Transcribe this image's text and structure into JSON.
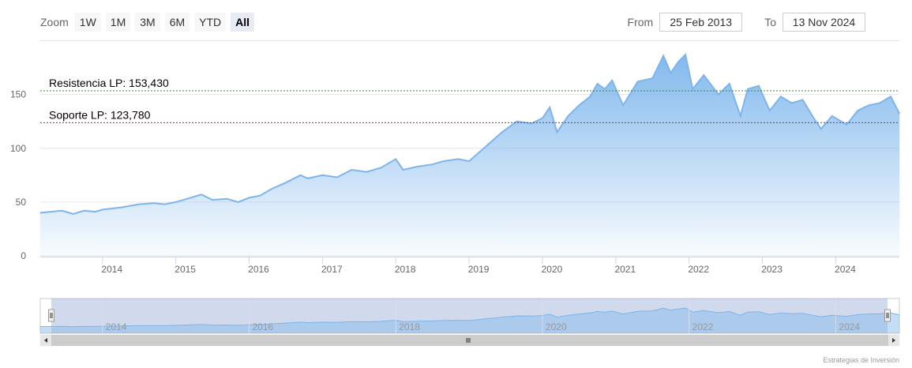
{
  "toolbar": {
    "zoom_label": "Zoom",
    "buttons": [
      "1W",
      "1M",
      "3M",
      "6M",
      "YTD",
      "All"
    ],
    "active": "All",
    "from_label": "From",
    "from_value": "25 Feb 2013",
    "to_label": "To",
    "to_value": "13 Nov 2024"
  },
  "credit": "Estrategias de Inversión",
  "colors": {
    "line": "#7cb5ec",
    "resistance": "#2e8b2e",
    "support": "#b22222"
  },
  "chart_data": {
    "type": "area",
    "x_start": "2013-02-25",
    "x_end": "2024-11-13",
    "ylim": [
      0,
      200
    ],
    "y_ticks": [
      0,
      50,
      100,
      150
    ],
    "x_ticks": [
      2014,
      2015,
      2016,
      2017,
      2018,
      2019,
      2020,
      2021,
      2022,
      2023,
      2024
    ],
    "navigator_ticks": [
      2014,
      2016,
      2018,
      2020,
      2022,
      2024
    ],
    "points": [
      [
        2013.15,
        40
      ],
      [
        2013.3,
        41
      ],
      [
        2013.45,
        42
      ],
      [
        2013.6,
        39
      ],
      [
        2013.75,
        42
      ],
      [
        2013.9,
        41
      ],
      [
        2014.0,
        43
      ],
      [
        2014.25,
        45
      ],
      [
        2014.5,
        48
      ],
      [
        2014.7,
        49
      ],
      [
        2014.85,
        48
      ],
      [
        2015.0,
        50
      ],
      [
        2015.2,
        54
      ],
      [
        2015.35,
        57
      ],
      [
        2015.5,
        52
      ],
      [
        2015.7,
        53
      ],
      [
        2015.85,
        50
      ],
      [
        2016.0,
        54
      ],
      [
        2016.15,
        56
      ],
      [
        2016.3,
        62
      ],
      [
        2016.5,
        68
      ],
      [
        2016.7,
        75
      ],
      [
        2016.8,
        72
      ],
      [
        2017.0,
        75
      ],
      [
        2017.2,
        73
      ],
      [
        2017.4,
        80
      ],
      [
        2017.6,
        78
      ],
      [
        2017.8,
        82
      ],
      [
        2017.9,
        86
      ],
      [
        2018.0,
        90
      ],
      [
        2018.1,
        80
      ],
      [
        2018.3,
        83
      ],
      [
        2018.5,
        85
      ],
      [
        2018.65,
        88
      ],
      [
        2018.85,
        90
      ],
      [
        2019.0,
        88
      ],
      [
        2019.2,
        100
      ],
      [
        2019.45,
        115
      ],
      [
        2019.65,
        125
      ],
      [
        2019.85,
        123
      ],
      [
        2020.0,
        128
      ],
      [
        2020.1,
        138
      ],
      [
        2020.2,
        115
      ],
      [
        2020.35,
        130
      ],
      [
        2020.5,
        140
      ],
      [
        2020.65,
        148
      ],
      [
        2020.75,
        160
      ],
      [
        2020.85,
        155
      ],
      [
        2020.95,
        163
      ],
      [
        2021.1,
        140
      ],
      [
        2021.3,
        162
      ],
      [
        2021.5,
        165
      ],
      [
        2021.65,
        186
      ],
      [
        2021.75,
        170
      ],
      [
        2021.85,
        180
      ],
      [
        2021.95,
        187
      ],
      [
        2022.05,
        155
      ],
      [
        2022.2,
        168
      ],
      [
        2022.4,
        150
      ],
      [
        2022.55,
        160
      ],
      [
        2022.7,
        130
      ],
      [
        2022.8,
        155
      ],
      [
        2022.95,
        158
      ],
      [
        2023.1,
        135
      ],
      [
        2023.25,
        148
      ],
      [
        2023.4,
        142
      ],
      [
        2023.55,
        145
      ],
      [
        2023.7,
        128
      ],
      [
        2023.8,
        118
      ],
      [
        2023.95,
        130
      ],
      [
        2024.15,
        122
      ],
      [
        2024.3,
        135
      ],
      [
        2024.45,
        140
      ],
      [
        2024.6,
        142
      ],
      [
        2024.75,
        148
      ],
      [
        2024.87,
        132
      ]
    ],
    "annotations": [
      {
        "text": "Resistencia LP: 153,430",
        "value": 153.43,
        "series": "resistance"
      },
      {
        "text": "Soporte LP: 123,780",
        "value": 123.78,
        "series": "support"
      }
    ]
  }
}
